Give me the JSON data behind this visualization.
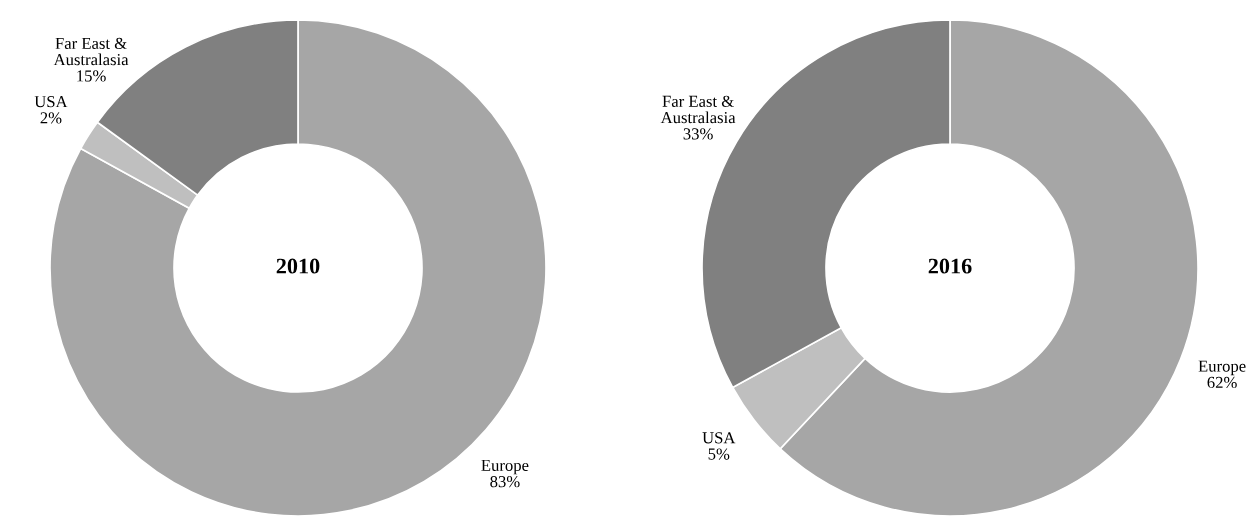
{
  "chart_data": [
    {
      "type": "donut",
      "title": "2010",
      "categories": [
        "Europe",
        "USA",
        "Far East & Australasia"
      ],
      "values": [
        83,
        2,
        15
      ],
      "value_labels": [
        "83%",
        "2%",
        "15%"
      ],
      "colors": [
        "#a6a6a6",
        "#bfbfbf",
        "#808080"
      ]
    },
    {
      "type": "donut",
      "title": "2016",
      "categories": [
        "Europe",
        "USA",
        "Far East & Australasia"
      ],
      "values": [
        62,
        5,
        33
      ],
      "value_labels": [
        "62%",
        "5%",
        "33%"
      ],
      "colors": [
        "#a6a6a6",
        "#bfbfbf",
        "#808080"
      ]
    }
  ]
}
